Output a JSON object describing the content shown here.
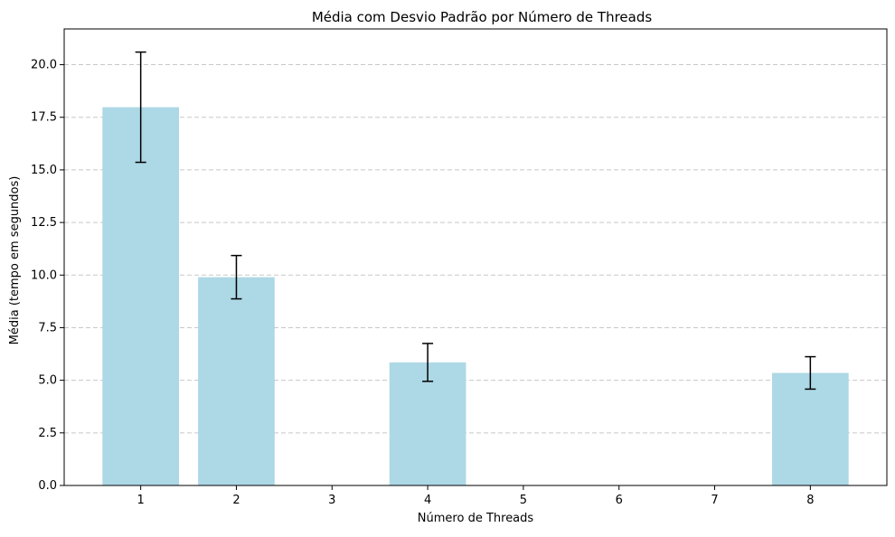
{
  "chart_data": {
    "type": "bar",
    "title": "Média com Desvio Padrão por Número de Threads",
    "xlabel": "Número de Threads",
    "ylabel": "Média (tempo em segundos)",
    "x_ticks": [
      1,
      2,
      3,
      4,
      5,
      6,
      7,
      8
    ],
    "x_tick_labels": [
      "1",
      "2",
      "3",
      "4",
      "5",
      "6",
      "7",
      "8"
    ],
    "x": [
      1,
      2,
      4,
      8
    ],
    "values": [
      17.98,
      9.9,
      5.85,
      5.35
    ],
    "error": [
      2.62,
      1.03,
      0.9,
      0.77
    ],
    "xlim": [
      0.2,
      8.8
    ],
    "ylim": [
      0,
      21.7
    ],
    "y_ticks": [
      0.0,
      2.5,
      5.0,
      7.5,
      10.0,
      12.5,
      15.0,
      17.5,
      20.0
    ],
    "y_tick_labels": [
      "0.0",
      "2.5",
      "5.0",
      "7.5",
      "10.0",
      "12.5",
      "15.0",
      "17.5",
      "20.0"
    ],
    "grid": "y-dashed",
    "colors": {
      "bar": "#add8e6",
      "error": "#000000",
      "grid": "#c8c8c8",
      "axis": "#000000"
    }
  }
}
